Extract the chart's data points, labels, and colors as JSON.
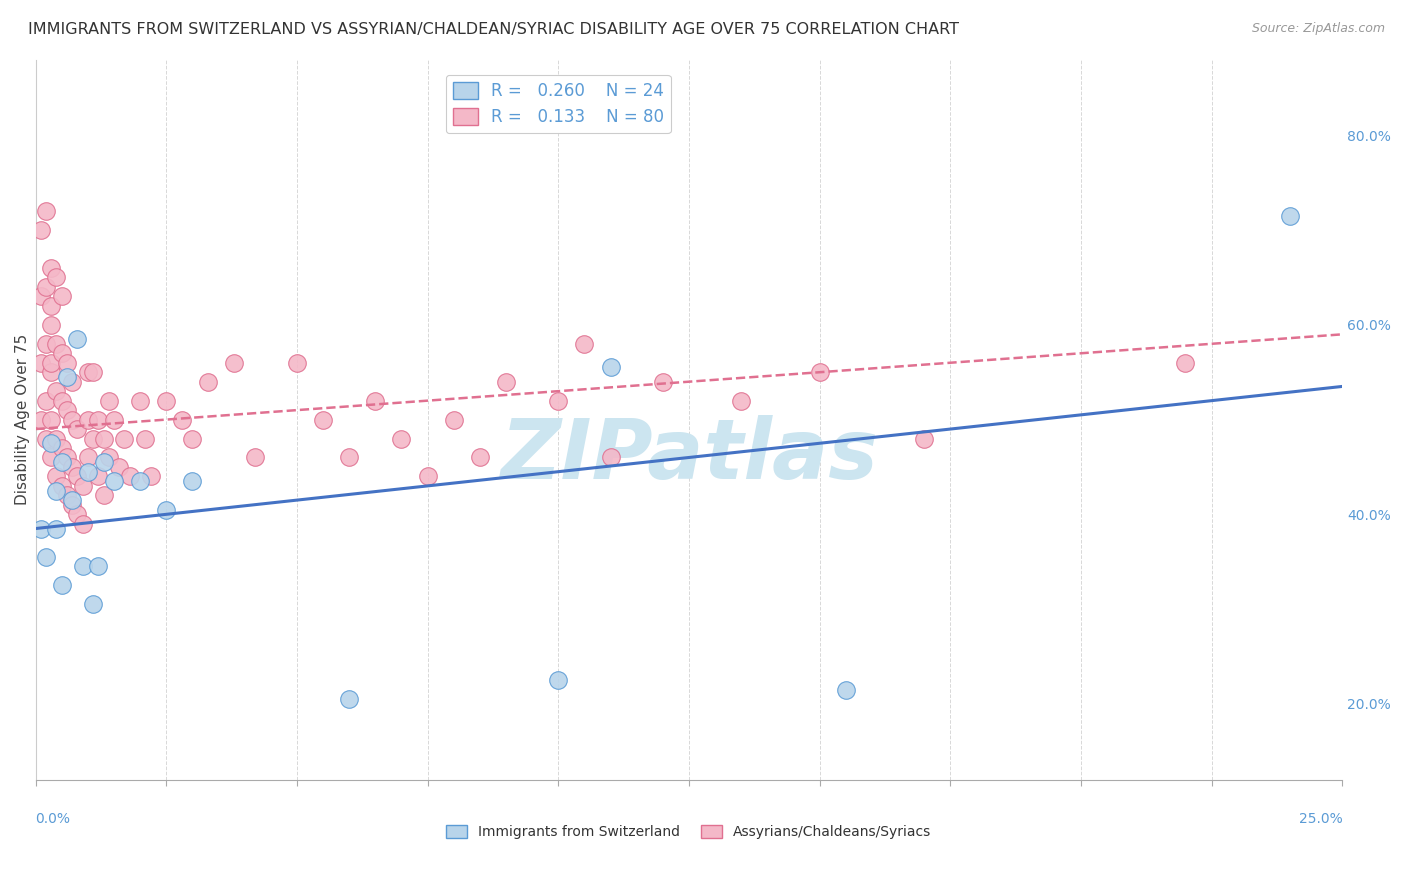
{
  "title": "IMMIGRANTS FROM SWITZERLAND VS ASSYRIAN/CHALDEAN/SYRIAC DISABILITY AGE OVER 75 CORRELATION CHART",
  "source": "Source: ZipAtlas.com",
  "ylabel": "Disability Age Over 75",
  "right_ytick_labels": [
    "20.0%",
    "40.0%",
    "60.0%",
    "80.0%"
  ],
  "right_ytick_values": [
    0.2,
    0.4,
    0.6,
    0.8
  ],
  "xlim": [
    0.0,
    0.25
  ],
  "ylim": [
    0.12,
    0.88
  ],
  "series_blue": {
    "label": "Immigrants from Switzerland",
    "R": 0.26,
    "N": 24,
    "color": "#b8d4ea",
    "edge_color": "#5b9bd5",
    "line_color": "#4472c4",
    "x": [
      0.001,
      0.002,
      0.003,
      0.004,
      0.004,
      0.005,
      0.005,
      0.006,
      0.007,
      0.008,
      0.009,
      0.01,
      0.011,
      0.012,
      0.013,
      0.015,
      0.02,
      0.025,
      0.03,
      0.06,
      0.1,
      0.11,
      0.155,
      0.24
    ],
    "y": [
      0.385,
      0.355,
      0.475,
      0.385,
      0.425,
      0.455,
      0.325,
      0.545,
      0.415,
      0.585,
      0.345,
      0.445,
      0.305,
      0.345,
      0.455,
      0.435,
      0.435,
      0.405,
      0.435,
      0.205,
      0.225,
      0.555,
      0.215,
      0.715
    ],
    "trend_x": [
      0.0,
      0.25
    ],
    "trend_y": [
      0.385,
      0.535
    ]
  },
  "series_pink": {
    "label": "Assyrians/Chaldeans/Syriacs",
    "R": 0.133,
    "N": 80,
    "color": "#f4b8c8",
    "edge_color": "#e07090",
    "line_color": "#e07090",
    "x": [
      0.001,
      0.001,
      0.001,
      0.001,
      0.002,
      0.002,
      0.002,
      0.002,
      0.002,
      0.003,
      0.003,
      0.003,
      0.003,
      0.003,
      0.003,
      0.003,
      0.004,
      0.004,
      0.004,
      0.004,
      0.004,
      0.005,
      0.005,
      0.005,
      0.005,
      0.005,
      0.006,
      0.006,
      0.006,
      0.006,
      0.007,
      0.007,
      0.007,
      0.007,
      0.008,
      0.008,
      0.008,
      0.009,
      0.009,
      0.01,
      0.01,
      0.01,
      0.011,
      0.011,
      0.012,
      0.012,
      0.013,
      0.013,
      0.014,
      0.014,
      0.015,
      0.016,
      0.017,
      0.018,
      0.02,
      0.021,
      0.022,
      0.025,
      0.028,
      0.03,
      0.033,
      0.038,
      0.042,
      0.05,
      0.055,
      0.06,
      0.065,
      0.07,
      0.075,
      0.08,
      0.085,
      0.09,
      0.1,
      0.105,
      0.11,
      0.12,
      0.135,
      0.15,
      0.17,
      0.22
    ],
    "y": [
      0.5,
      0.56,
      0.63,
      0.7,
      0.48,
      0.52,
      0.58,
      0.64,
      0.72,
      0.46,
      0.5,
      0.55,
      0.6,
      0.66,
      0.56,
      0.62,
      0.44,
      0.48,
      0.53,
      0.58,
      0.65,
      0.43,
      0.47,
      0.52,
      0.57,
      0.63,
      0.42,
      0.46,
      0.51,
      0.56,
      0.41,
      0.45,
      0.5,
      0.54,
      0.4,
      0.44,
      0.49,
      0.39,
      0.43,
      0.5,
      0.55,
      0.46,
      0.48,
      0.55,
      0.44,
      0.5,
      0.42,
      0.48,
      0.46,
      0.52,
      0.5,
      0.45,
      0.48,
      0.44,
      0.52,
      0.48,
      0.44,
      0.52,
      0.5,
      0.48,
      0.54,
      0.56,
      0.46,
      0.56,
      0.5,
      0.46,
      0.52,
      0.48,
      0.44,
      0.5,
      0.46,
      0.54,
      0.52,
      0.58,
      0.46,
      0.54,
      0.52,
      0.55,
      0.48,
      0.56
    ],
    "trend_x": [
      0.0,
      0.25
    ],
    "trend_y": [
      0.49,
      0.59
    ]
  },
  "watermark": "ZIPatlas",
  "watermark_color": "#cce5f0",
  "background_color": "#ffffff",
  "grid_color": "#d8d8d8",
  "title_fontsize": 11.5,
  "axis_label_fontsize": 11,
  "tick_fontsize": 10,
  "legend_fontsize": 12,
  "bottom_legend_items": [
    "Immigrants from Switzerland",
    "Assyrians/Chaldeans/Syriacs"
  ],
  "bottom_legend_colors": [
    "#b8d4ea",
    "#f4b8c8"
  ],
  "bottom_legend_edge_colors": [
    "#5b9bd5",
    "#e07090"
  ]
}
